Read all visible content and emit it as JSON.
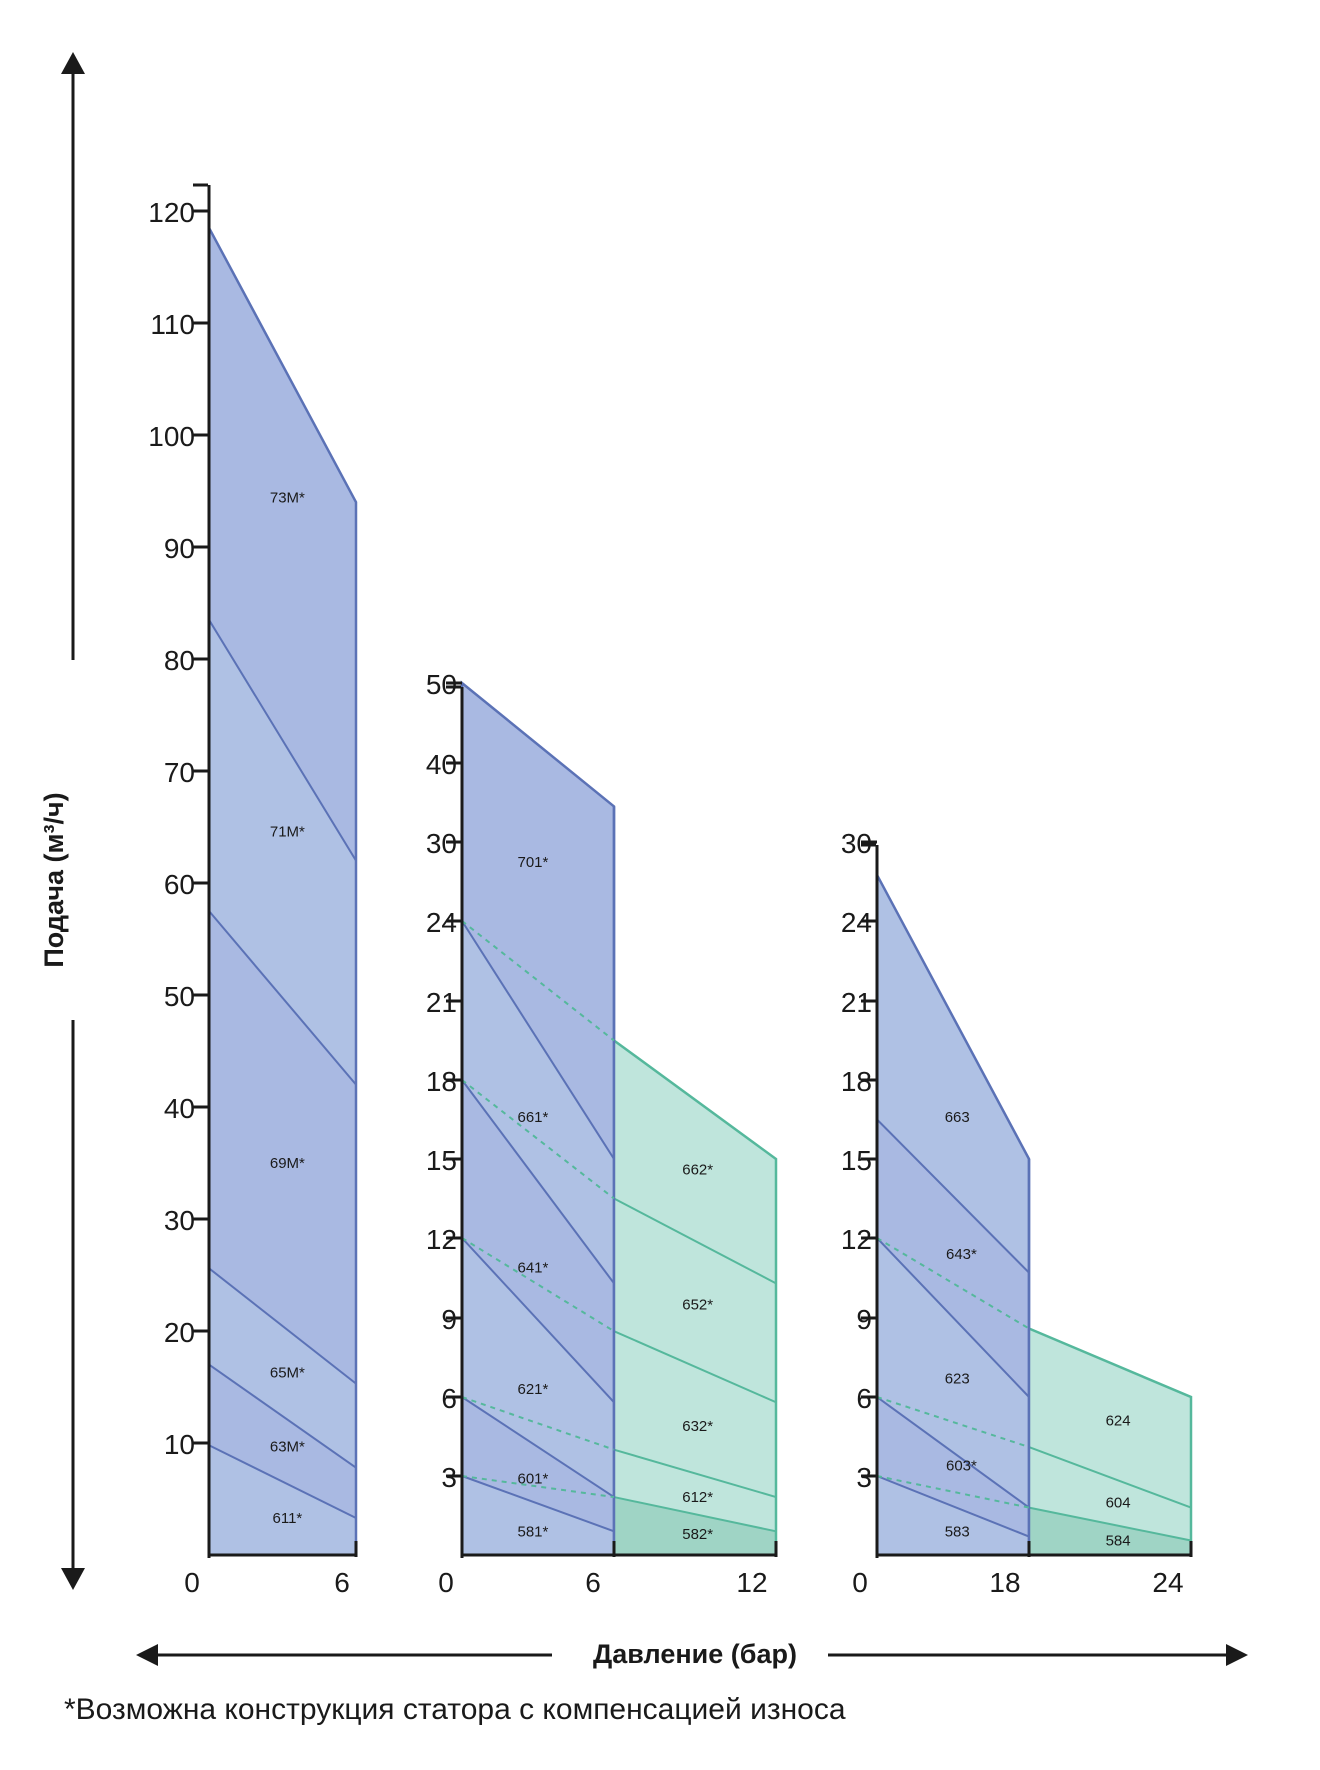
{
  "y_axis_title": "Подача (м³/ч)",
  "x_axis_title": "Давление (бар)",
  "footnote": "*Возможна конструкция статора с компенсацией износа",
  "colors": {
    "blue_fill": "#afc1e4",
    "blue_fill_dark": "#a9b9e2",
    "blue_line": "#5b72b6",
    "green_fill": "#bfe5dc",
    "green_fill_dark": "#9fd4c5",
    "green_line": "#55b89c",
    "axis": "#1a1a1a"
  },
  "chart_data": [
    {
      "type": "area",
      "x_ticks": [
        "0",
        "6"
      ],
      "y_ticks": [
        "10",
        "20",
        "30",
        "40",
        "50",
        "60",
        "70",
        "80",
        "90",
        "100",
        "110",
        "120"
      ],
      "xlim": [
        0,
        6
      ],
      "ylim": [
        0,
        120
      ],
      "boundaries_blue": [
        {
          "y0": 9.8,
          "y1": 3.3
        },
        {
          "y0": 17,
          "y1": 7.8
        },
        {
          "y0": 25.6,
          "y1": 15.3
        },
        {
          "y0": 57.5,
          "y1": 42
        },
        {
          "y0": 83.5,
          "y1": 62
        },
        {
          "y0": 118.5,
          "y1": 94
        }
      ],
      "regions": [
        {
          "label": "611*",
          "x": 3.2,
          "y": 3.3
        },
        {
          "label": "63M*",
          "x": 3.2,
          "y": 9.7
        },
        {
          "label": "65M*",
          "x": 3.2,
          "y": 16.3
        },
        {
          "label": "69M*",
          "x": 3.2,
          "y": 35
        },
        {
          "label": "71M*",
          "x": 3.2,
          "y": 64.6
        },
        {
          "label": "73M*",
          "x": 3.2,
          "y": 94.4
        }
      ]
    },
    {
      "type": "area",
      "x_ticks": [
        "0",
        "6",
        "12"
      ],
      "y_ticks": [
        "3",
        "6",
        "9",
        "12",
        "15",
        "18",
        "21",
        "24",
        "30",
        "40",
        "50"
      ],
      "xlim": [
        0,
        12
      ],
      "boundaries_blue": [
        {
          "y0": 3,
          "y1": 0.9
        },
        {
          "y0": 6,
          "y1": 2.2
        },
        {
          "y0": 12,
          "y1": 5.8
        },
        {
          "y0": 18,
          "y1": 10.3
        },
        {
          "y0": 24,
          "y1": 15
        },
        {
          "y0": 50,
          "y1": 34.5
        }
      ],
      "boundaries_green": [
        {
          "y0": 2.2,
          "y1": 0.9
        },
        {
          "y0": 4,
          "y1": 2.2
        },
        {
          "y0": 8.5,
          "y1": 5.8
        },
        {
          "y0": 13.5,
          "y1": 10.3
        },
        {
          "y0": 19.5,
          "y1": 15
        }
      ],
      "dashed": [
        {
          "y0": 3,
          "y1": 2.2
        },
        {
          "y0": 6,
          "y1": 4
        },
        {
          "y0": 12,
          "y1": 8.5
        },
        {
          "y0": 18,
          "y1": 13.5
        },
        {
          "y0": 24,
          "y1": 19.5
        }
      ],
      "regions": [
        {
          "label": "581*",
          "x": 2.8,
          "y": 0.9
        },
        {
          "label": "601*",
          "x": 2.8,
          "y": 2.9
        },
        {
          "label": "621*",
          "x": 2.8,
          "y": 6.3
        },
        {
          "label": "641*",
          "x": 2.8,
          "y": 10.9
        },
        {
          "label": "661*",
          "x": 2.8,
          "y": 16.6
        },
        {
          "label": "701*",
          "x": 2.8,
          "y": 28.5
        },
        {
          "label": "582*",
          "x": 9.1,
          "y": 0.8
        },
        {
          "label": "612*",
          "x": 9.1,
          "y": 2.2
        },
        {
          "label": "632*",
          "x": 9.1,
          "y": 4.9
        },
        {
          "label": "652*",
          "x": 9.1,
          "y": 9.5
        },
        {
          "label": "662*",
          "x": 9.1,
          "y": 14.6
        }
      ]
    },
    {
      "type": "area",
      "x_ticks": [
        "0",
        "18",
        "24"
      ],
      "y_ticks": [
        "3",
        "6",
        "9",
        "12",
        "15",
        "18",
        "21",
        "24",
        "30"
      ],
      "xlim": [
        0,
        24
      ],
      "boundaries_blue": [
        {
          "y0": 3,
          "y1": 0.7
        },
        {
          "y0": 6,
          "y1": 1.8
        },
        {
          "y0": 12,
          "y1": 6
        },
        {
          "y0": 16.5,
          "y1": 10.7
        },
        {
          "y0": 27.5,
          "y1": 15
        }
      ],
      "boundaries_green": [
        {
          "y0": 1.8,
          "y1": 0.55
        },
        {
          "y0": 4.1,
          "y1": 1.8
        },
        {
          "y0": 8.6,
          "y1": 6
        }
      ],
      "dashed": [
        {
          "y0": 3,
          "y1": 1.8
        },
        {
          "y0": 6,
          "y1": 4.1
        },
        {
          "y0": 12,
          "y1": 8.6
        }
      ],
      "regions": [
        {
          "label": "583",
          "x": 9.5,
          "y": 0.9
        },
        {
          "label": "603*",
          "x": 10,
          "y": 3.4
        },
        {
          "label": "623",
          "x": 9.5,
          "y": 6.7
        },
        {
          "label": "643*",
          "x": 10,
          "y": 11.4
        },
        {
          "label": "663",
          "x": 9.5,
          "y": 16.6
        },
        {
          "label": "584",
          "x": 21.3,
          "y": 0.55
        },
        {
          "label": "604",
          "x": 21.3,
          "y": 2
        },
        {
          "label": "624",
          "x": 21.3,
          "y": 5.1
        }
      ]
    }
  ]
}
